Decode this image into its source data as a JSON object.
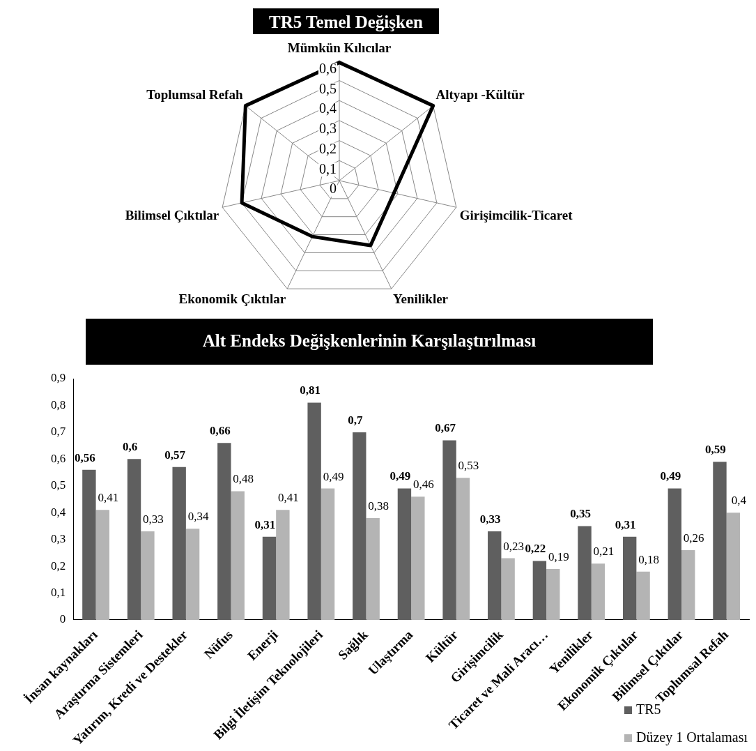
{
  "chart_data": [
    {
      "type": "radar",
      "title": "TR5 Temel Değişken",
      "categories": [
        "Mümkün Kılıcılar",
        "Altyapı -Kültür",
        "Girişimcilik-Ticaret",
        "Yenilikler",
        "Ekonomik Çıktılar",
        "Bilimsel Çıktılar",
        "Toplumsal Refah"
      ],
      "series": [
        {
          "color": "#000000",
          "values": [
            0.59,
            0.6,
            0.28,
            0.36,
            0.31,
            0.5,
            0.6
          ]
        }
      ],
      "ylim": [
        0,
        0.6
      ],
      "yticks": [
        {
          "value": 0,
          "label": "0"
        },
        {
          "value": 0.1,
          "label": "0,1"
        },
        {
          "value": 0.2,
          "label": "0,2"
        },
        {
          "value": 0.3,
          "label": "0,3"
        },
        {
          "value": 0.4,
          "label": "0,4"
        },
        {
          "value": 0.5,
          "label": "0,5"
        },
        {
          "value": 0.6,
          "label": "0,6"
        }
      ],
      "grid": true,
      "legend": false,
      "marker": "none"
    },
    {
      "type": "bar",
      "title": "Alt Endeks Değişkenlerinin Karşılaştırılması",
      "categories": [
        "İnsan kaynakları",
        "Araştırma Sistemleri",
        "Yatırım, Kredi ve Destekler",
        "Nüfus",
        "Enerji",
        "Bilgi İletişim Teknolojileri",
        "Sağlık",
        "Ulaştırma",
        "Kültür",
        "Girişimcilik",
        "Ticaret ve Mali Aracı…",
        "Yenilikler",
        "Ekonomik Çıktılar",
        "Bilimsel Çıktılar",
        "Toplumsal Refah"
      ],
      "series": [
        {
          "name": "TR5",
          "color": "#5f5f5f",
          "values": [
            0.56,
            0.6,
            0.57,
            0.66,
            0.31,
            0.81,
            0.7,
            0.49,
            0.67,
            0.33,
            0.22,
            0.35,
            0.31,
            0.49,
            0.59
          ],
          "value_labels": [
            "0,56",
            "0,6",
            "0,57",
            "0,66",
            "0,31",
            "0,81",
            "0,7",
            "0,49",
            "0,67",
            "0,33",
            "0,22",
            "0,35",
            "0,31",
            "0,49",
            "0,59"
          ]
        },
        {
          "name": "Düzey 1 Ortalaması",
          "color": "#b4b4b4",
          "values": [
            0.41,
            0.33,
            0.34,
            0.48,
            0.41,
            0.49,
            0.38,
            0.46,
            0.53,
            0.23,
            0.19,
            0.21,
            0.18,
            0.26,
            0.4
          ],
          "value_labels": [
            "0,41",
            "0,33",
            "0,34",
            "0,48",
            "0,41",
            "0,49",
            "0,38",
            "0,46",
            "0,53",
            "0,23",
            "0,19",
            "0,21",
            "0,18",
            "0,26",
            "0,4"
          ]
        }
      ],
      "ylim": [
        0,
        0.9
      ],
      "yticks": [
        {
          "value": 0,
          "label": "0"
        },
        {
          "value": 0.1,
          "label": "0,1"
        },
        {
          "value": 0.2,
          "label": "0,2"
        },
        {
          "value": 0.3,
          "label": "0,3"
        },
        {
          "value": 0.4,
          "label": "0,4"
        },
        {
          "value": 0.5,
          "label": "0,5"
        },
        {
          "value": 0.6,
          "label": "0,6"
        },
        {
          "value": 0.7,
          "label": "0,7"
        },
        {
          "value": 0.8,
          "label": "0,8"
        },
        {
          "value": 0.9,
          "label": "0,9"
        }
      ],
      "grid": false,
      "legend": "bottom right"
    }
  ]
}
